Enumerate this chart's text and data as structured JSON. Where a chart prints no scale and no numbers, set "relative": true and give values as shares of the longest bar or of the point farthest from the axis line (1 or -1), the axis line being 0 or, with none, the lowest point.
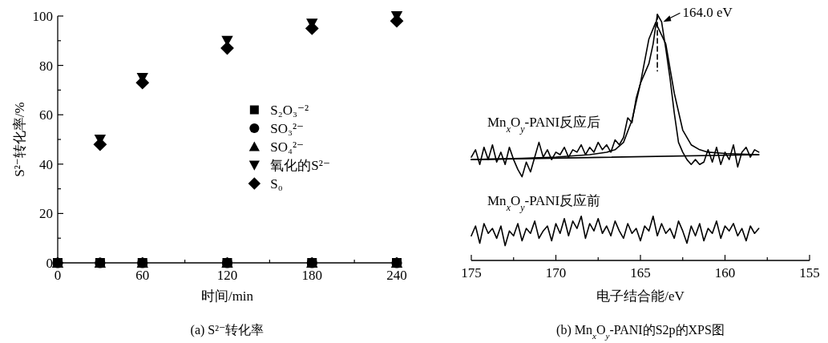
{
  "chart_data": [
    {
      "type": "scatter",
      "title": "(a) S²⁻转化率",
      "xlabel": "时间/min",
      "ylabel": "S²⁻转化率/%",
      "x": [
        0,
        30,
        60,
        120,
        180,
        240
      ],
      "xlim": [
        0,
        240
      ],
      "ylim": [
        0,
        100
      ],
      "xticks": [
        0,
        {
          "value": 30,
          "label": null
        },
        60,
        {
          "value": 90,
          "label": null
        },
        120,
        {
          "value": 150,
          "label": null
        },
        180,
        {
          "value": 210,
          "label": null
        },
        240
      ],
      "yticks": [
        0,
        {
          "value": 10,
          "label": null
        },
        20,
        {
          "value": 30,
          "label": null
        },
        40,
        {
          "value": 50,
          "label": null
        },
        60,
        {
          "value": 70,
          "label": null
        },
        80,
        {
          "value": 90,
          "label": null
        },
        100
      ],
      "legend": "right",
      "series": [
        {
          "name": "S₂O₃⁻²",
          "color": "#000000",
          "marker": "square",
          "values": [
            0,
            0,
            0,
            0,
            0,
            0
          ]
        },
        {
          "name": "SO₃²⁻",
          "color": "#000000",
          "marker": "circle",
          "values": [
            0,
            0,
            0,
            0,
            0,
            0
          ]
        },
        {
          "name": "SO₄²⁻",
          "color": "#000000",
          "marker": "triangle",
          "values": [
            0,
            0,
            0,
            0,
            0,
            0
          ]
        },
        {
          "name": "氧化的S²⁻",
          "color": "#000000",
          "marker": "triangle-down",
          "values": [
            null,
            50,
            75,
            90,
            97,
            100
          ]
        },
        {
          "name": "S₀",
          "color": "#000000",
          "marker": "diamond",
          "values": [
            null,
            48,
            73,
            87,
            95,
            98
          ]
        }
      ]
    },
    {
      "type": "line",
      "relative": true,
      "title": "(b) Mn$_{x}$O$_{y}$-PANI的S2p的XPS图",
      "xlabel": "电子结合能/eV",
      "xlim": [
        175,
        155
      ],
      "xticks": [
        175,
        {
          "value": 172.5,
          "label": null
        },
        170,
        {
          "value": 167.5,
          "label": null
        },
        165,
        {
          "value": 162.5,
          "label": null
        },
        160,
        {
          "value": 157.5,
          "label": null
        },
        155
      ],
      "tick_labels": "x",
      "x": [
        175,
        174.75,
        174.5,
        174.25,
        174,
        173.75,
        173.5,
        173.25,
        173,
        172.75,
        172.5,
        172.25,
        172,
        171.75,
        171.5,
        171.25,
        171,
        170.75,
        170.5,
        170.25,
        170,
        169.75,
        169.5,
        169.25,
        169,
        168.75,
        168.5,
        168.25,
        168,
        167.75,
        167.5,
        167.25,
        167,
        166.75,
        166.5,
        166.25,
        166,
        165.75,
        165.5,
        165.25,
        165,
        164.75,
        164.5,
        164.25,
        164,
        163.75,
        163.5,
        163.25,
        163,
        162.75,
        162.5,
        162.25,
        162,
        161.75,
        161.5,
        161.25,
        161,
        160.75,
        160.5,
        160.25,
        160,
        159.75,
        159.5,
        159.25,
        159,
        158.75,
        158.5,
        158.25,
        158
      ],
      "annotations": [
        {
          "text": "164.0 eV",
          "x": 163.7,
          "y": 0.97
        }
      ],
      "series": [
        {
          "name": "Mn$_{x}$O$_{y}$-PANI反应后",
          "color": "#000000",
          "values": [
            0.42,
            0.45,
            0.39,
            0.46,
            0.41,
            0.47,
            0.4,
            0.44,
            0.39,
            0.46,
            0.41,
            0.37,
            0.34,
            0.4,
            0.36,
            0.42,
            0.48,
            0.42,
            0.45,
            0.41,
            0.44,
            0.43,
            0.46,
            0.42,
            0.45,
            0.44,
            0.47,
            0.43,
            0.46,
            0.44,
            0.48,
            0.45,
            0.47,
            0.44,
            0.49,
            0.47,
            0.5,
            0.58,
            0.56,
            0.66,
            0.72,
            0.76,
            0.8,
            0.88,
            1.0,
            0.97,
            0.86,
            0.74,
            0.6,
            0.48,
            0.44,
            0.41,
            0.39,
            0.41,
            0.39,
            0.4,
            0.45,
            0.4,
            0.46,
            0.39,
            0.44,
            0.41,
            0.47,
            0.38,
            0.44,
            0.46,
            0.42,
            0.45,
            0.44
          ]
        },
        {
          "color": "#000000",
          "x": [
            175,
            172,
            170,
            168,
            167,
            166.5,
            166,
            165.5,
            165,
            164.5,
            164.1,
            163.5,
            163,
            162.5,
            162,
            161.5,
            161,
            160,
            158
          ],
          "values": [
            0.41,
            0.415,
            0.42,
            0.43,
            0.44,
            0.45,
            0.48,
            0.57,
            0.72,
            0.9,
            0.967,
            0.88,
            0.68,
            0.53,
            0.47,
            0.45,
            0.44,
            0.435,
            0.43
          ]
        },
        {
          "color": "#000000",
          "x": [
            175,
            158
          ],
          "values": [
            0.41,
            0.43
          ]
        },
        {
          "color": "#000000",
          "line_style": "dashed",
          "x": [
            164,
            164
          ],
          "values": [
            1.0,
            0.77
          ]
        },
        {
          "name": "Mn$_{x}$O$_{y}$-PANI反应前",
          "color": "#000000",
          "values": [
            0.1,
            0.14,
            0.07,
            0.15,
            0.11,
            0.13,
            0.09,
            0.14,
            0.06,
            0.12,
            0.1,
            0.15,
            0.08,
            0.13,
            0.11,
            0.16,
            0.09,
            0.12,
            0.14,
            0.08,
            0.15,
            0.11,
            0.17,
            0.1,
            0.16,
            0.13,
            0.18,
            0.09,
            0.15,
            0.12,
            0.17,
            0.11,
            0.14,
            0.1,
            0.16,
            0.12,
            0.09,
            0.15,
            0.11,
            0.13,
            0.08,
            0.14,
            0.12,
            0.18,
            0.1,
            0.15,
            0.11,
            0.13,
            0.09,
            0.16,
            0.12,
            0.07,
            0.14,
            0.1,
            0.15,
            0.08,
            0.13,
            0.11,
            0.16,
            0.09,
            0.14,
            0.12,
            0.15,
            0.1,
            0.13,
            0.08,
            0.14,
            0.11,
            0.13
          ]
        }
      ]
    }
  ]
}
